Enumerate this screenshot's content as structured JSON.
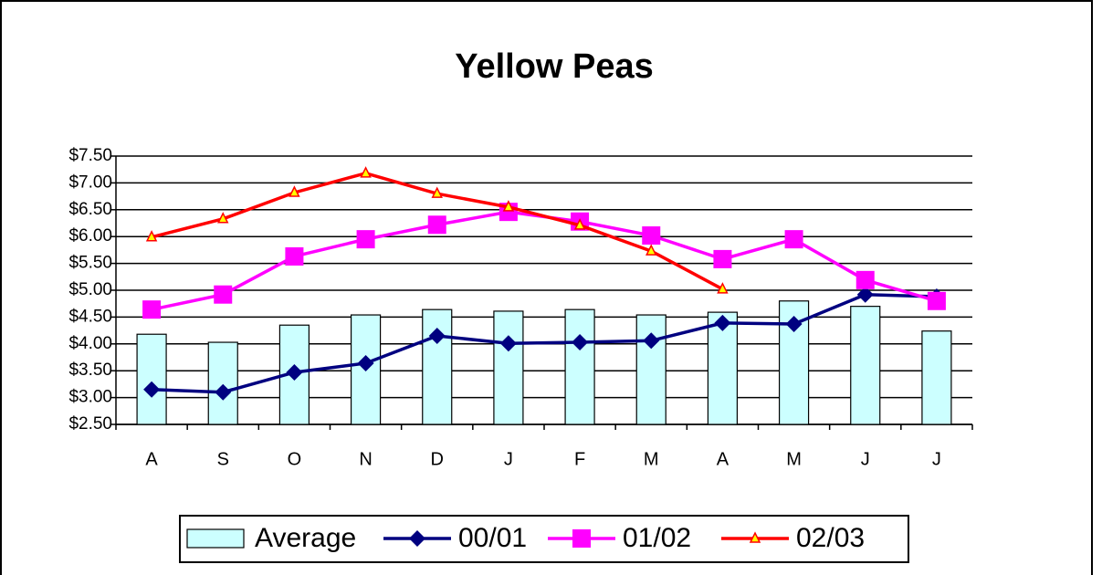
{
  "chart_data": {
    "type": "combo",
    "title": "Yellow Peas",
    "categories": [
      "A",
      "S",
      "O",
      "N",
      "D",
      "J",
      "F",
      "M",
      "A",
      "M",
      "J",
      "J"
    ],
    "series": [
      {
        "name": "Average",
        "type": "bar",
        "color": "#ccffff",
        "values": [
          4.18,
          4.03,
          4.35,
          4.54,
          4.64,
          4.61,
          4.64,
          4.54,
          4.59,
          4.8,
          4.7,
          4.24
        ]
      },
      {
        "name": "00/01",
        "type": "line",
        "marker": "diamond",
        "color": "#000080",
        "values": [
          3.15,
          3.1,
          3.47,
          3.64,
          4.15,
          4.01,
          4.03,
          4.06,
          4.39,
          4.37,
          4.92,
          4.88
        ]
      },
      {
        "name": "01/02",
        "type": "line",
        "marker": "square",
        "color": "#ff00ff",
        "values": [
          4.64,
          4.92,
          5.63,
          5.95,
          6.22,
          6.46,
          6.28,
          6.02,
          5.58,
          5.95,
          5.19,
          4.8
        ]
      },
      {
        "name": "02/03",
        "type": "line",
        "marker": "triangle",
        "color": "#ff0000",
        "values": [
          5.99,
          6.33,
          6.82,
          7.18,
          6.8,
          6.55,
          6.21,
          5.73,
          5.02,
          null,
          null,
          null
        ]
      }
    ],
    "ylim": [
      2.5,
      7.5
    ],
    "yticks": [
      {
        "value": 2.5,
        "label": "$2.50"
      },
      {
        "value": 3,
        "label": "$3.00"
      },
      {
        "value": 3.5,
        "label": "$3.50"
      },
      {
        "value": 4,
        "label": "$4.00"
      },
      {
        "value": 4.5,
        "label": "$4.50"
      },
      {
        "value": 5,
        "label": "$5.00"
      },
      {
        "value": 5.5,
        "label": "$5.50"
      },
      {
        "value": 6,
        "label": "$6.00"
      },
      {
        "value": 6.5,
        "label": "$6.50"
      },
      {
        "value": 7,
        "label": "$7.00"
      },
      {
        "value": 7.5,
        "label": "$7.50"
      }
    ],
    "grid": true,
    "legend": "bottom"
  }
}
